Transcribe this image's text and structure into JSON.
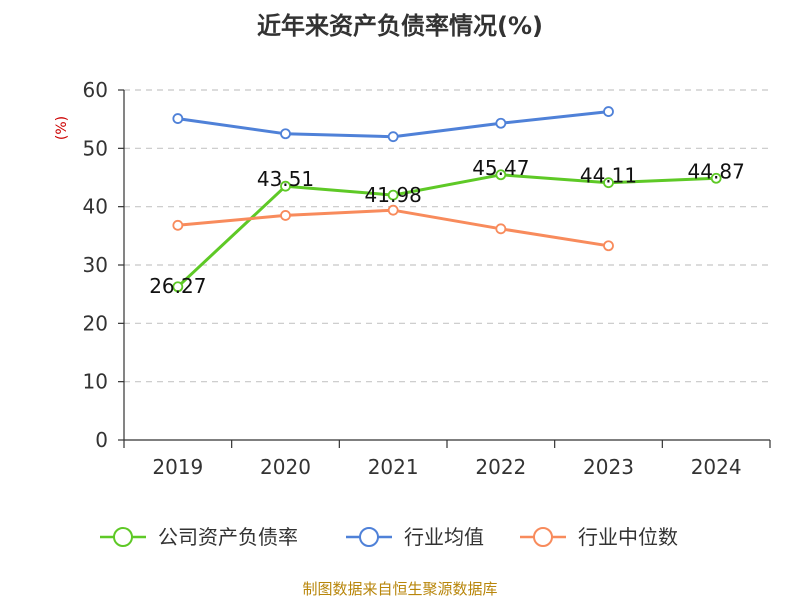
{
  "chart_data": {
    "type": "line",
    "title": "近年来资产负债率情况(%)",
    "ylabel": "(%)",
    "categories": [
      "2019",
      "2020",
      "2021",
      "2022",
      "2023",
      "2024"
    ],
    "ylim": [
      0,
      60
    ],
    "yticks": [
      0,
      10,
      20,
      30,
      40,
      50,
      60
    ],
    "grid": true,
    "legend_position": "bottom",
    "series": [
      {
        "name": "公司资产负债率",
        "color": "#5ec926",
        "values": [
          26.27,
          43.51,
          41.98,
          45.47,
          44.11,
          44.87
        ],
        "labels": [
          "26.27",
          "43.51",
          "41.98",
          "45.47",
          "44.11",
          "44.87"
        ]
      },
      {
        "name": "行业均值",
        "color": "#4f81d8",
        "values": [
          55.1,
          52.5,
          52.0,
          54.3,
          56.3,
          null
        ]
      },
      {
        "name": "行业中位数",
        "color": "#f88b5c",
        "values": [
          36.8,
          38.5,
          39.4,
          36.2,
          33.3,
          null
        ]
      }
    ],
    "source": "制图数据来自恒生聚源数据库"
  }
}
